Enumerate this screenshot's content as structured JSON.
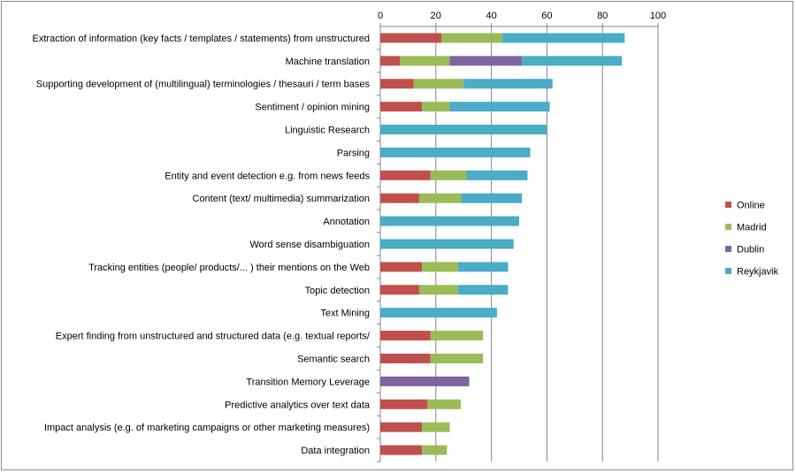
{
  "chart_data": {
    "type": "bar",
    "orientation": "horizontal",
    "stacked": true,
    "title": "",
    "xlabel": "",
    "ylabel": "",
    "xlim": [
      0,
      100
    ],
    "xticks": [
      0,
      20,
      40,
      60,
      80,
      100
    ],
    "xaxis_position": "top",
    "grid": true,
    "legend_position": "right",
    "categories": [
      "Extraction of information (key facts / templates / statements) from unstructured",
      "Machine translation",
      "Supporting development of (multilingual) terminologies / thesauri / term bases",
      "Sentiment / opinion mining",
      "Linguistic Research",
      "Parsing",
      "Entity and event detection e.g. from news feeds",
      "Content (text/ multimedia) summarization",
      "Annotation",
      "Word sense disambiguation",
      "Tracking entities (people/ products/... ) their mentions on the Web",
      "Topic detection",
      "Text Mining",
      "Expert finding from unstructured and structured data (e.g. textual reports/",
      "Semantic search",
      "Transition Memory Leverage",
      "Predictive analytics over text data",
      "Impact analysis (e.g. of marketing campaigns or other marketing measures)",
      "Data integration"
    ],
    "series": [
      {
        "name": "Online",
        "color": "#c0504d",
        "values": [
          22,
          7,
          12,
          15,
          0,
          0,
          18,
          14,
          0,
          0,
          15,
          14,
          0,
          18,
          18,
          0,
          17,
          15,
          15
        ]
      },
      {
        "name": "Madrid",
        "color": "#9bbb59",
        "values": [
          22,
          18,
          18,
          10,
          0,
          0,
          13,
          15,
          0,
          0,
          13,
          14,
          0,
          19,
          19,
          0,
          12,
          10,
          9
        ]
      },
      {
        "name": "Dublin",
        "color": "#8064a2",
        "values": [
          0,
          26,
          0,
          0,
          0,
          0,
          0,
          0,
          0,
          0,
          0,
          0,
          0,
          0,
          0,
          32,
          0,
          0,
          0
        ]
      },
      {
        "name": "Reykjavik",
        "color": "#4bacc6",
        "values": [
          44,
          36,
          32,
          36,
          60,
          54,
          22,
          22,
          50,
          48,
          18,
          18,
          42,
          0,
          0,
          0,
          0,
          0,
          0
        ]
      }
    ]
  }
}
